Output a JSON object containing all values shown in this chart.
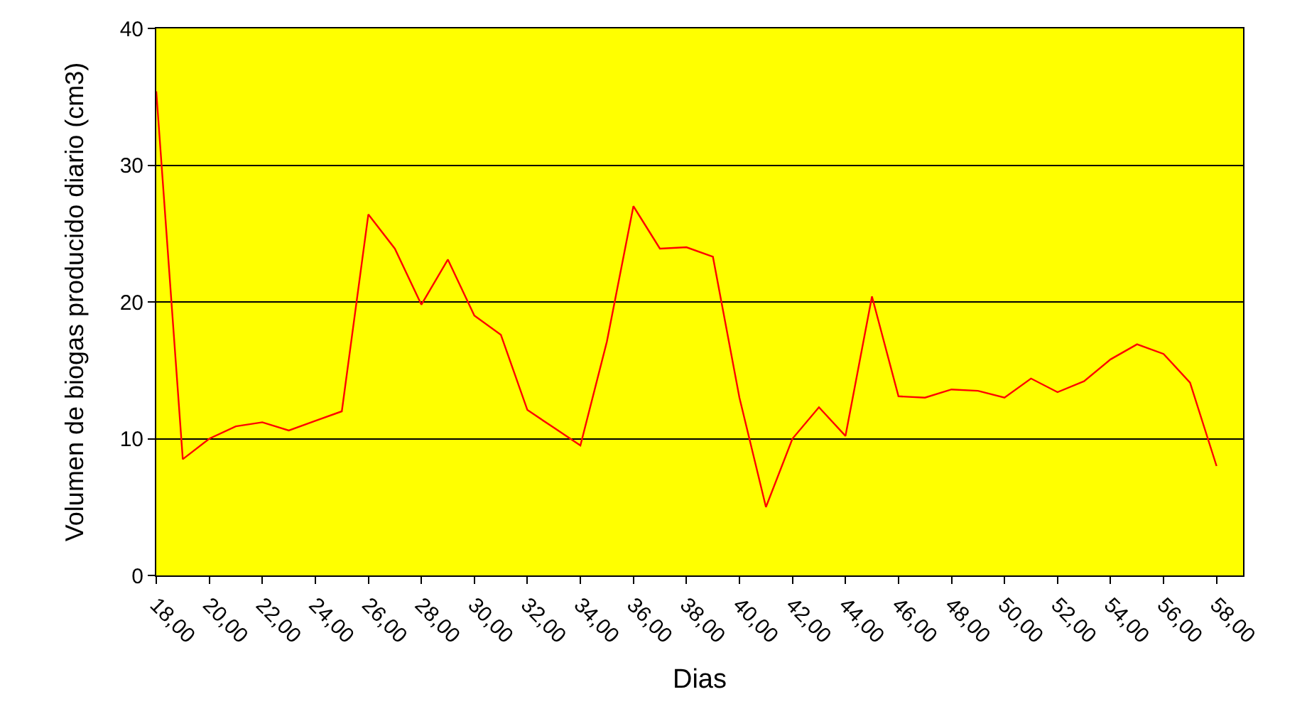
{
  "chart_data": {
    "type": "line",
    "xlabel": "Dias",
    "ylabel": "Volumen de biogas producido diario (cm3)",
    "x": [
      18,
      19,
      20,
      21,
      22,
      23,
      24,
      25,
      26,
      27,
      28,
      29,
      30,
      31,
      32,
      33,
      34,
      35,
      36,
      37,
      38,
      39,
      40,
      41,
      42,
      43,
      44,
      45,
      46,
      47,
      48,
      49,
      50,
      51,
      52,
      53,
      54,
      55,
      56,
      57,
      58
    ],
    "series": [
      {
        "color": "#ff0000",
        "values": [
          35.4,
          8.5,
          10.0,
          10.9,
          11.2,
          10.6,
          11.3,
          12.0,
          26.4,
          23.9,
          19.8,
          23.1,
          19.0,
          17.6,
          12.1,
          10.8,
          9.5,
          17.1,
          27.0,
          23.9,
          24.0,
          23.3,
          13.0,
          5.0,
          10.0,
          12.3,
          10.2,
          20.4,
          13.1,
          13.0,
          13.6,
          13.5,
          13.0,
          14.4,
          13.4,
          14.2,
          15.8,
          16.9,
          16.2,
          14.1,
          8.0
        ]
      }
    ],
    "xlim": [
      18,
      59
    ],
    "xticks": [
      {
        "value": 18,
        "label": "18,00"
      },
      {
        "value": 20,
        "label": "20,00"
      },
      {
        "value": 22,
        "label": "22,00"
      },
      {
        "value": 24,
        "label": "24,00"
      },
      {
        "value": 26,
        "label": "26,00"
      },
      {
        "value": 28,
        "label": "28,00"
      },
      {
        "value": 30,
        "label": "30,00"
      },
      {
        "value": 32,
        "label": "32,00"
      },
      {
        "value": 34,
        "label": "34,00"
      },
      {
        "value": 36,
        "label": "36,00"
      },
      {
        "value": 38,
        "label": "38,00"
      },
      {
        "value": 40,
        "label": "40,00"
      },
      {
        "value": 42,
        "label": "42,00"
      },
      {
        "value": 44,
        "label": "44,00"
      },
      {
        "value": 46,
        "label": "46,00"
      },
      {
        "value": 48,
        "label": "48,00"
      },
      {
        "value": 50,
        "label": "50,00"
      },
      {
        "value": 52,
        "label": "52,00"
      },
      {
        "value": 54,
        "label": "54,00"
      },
      {
        "value": 56,
        "label": "56,00"
      },
      {
        "value": 58,
        "label": "58,00"
      }
    ],
    "ylim": [
      0,
      40
    ],
    "yticks": [
      0,
      10,
      20,
      30,
      40
    ],
    "grid": "y",
    "marker": "none",
    "line_style": "solid"
  }
}
